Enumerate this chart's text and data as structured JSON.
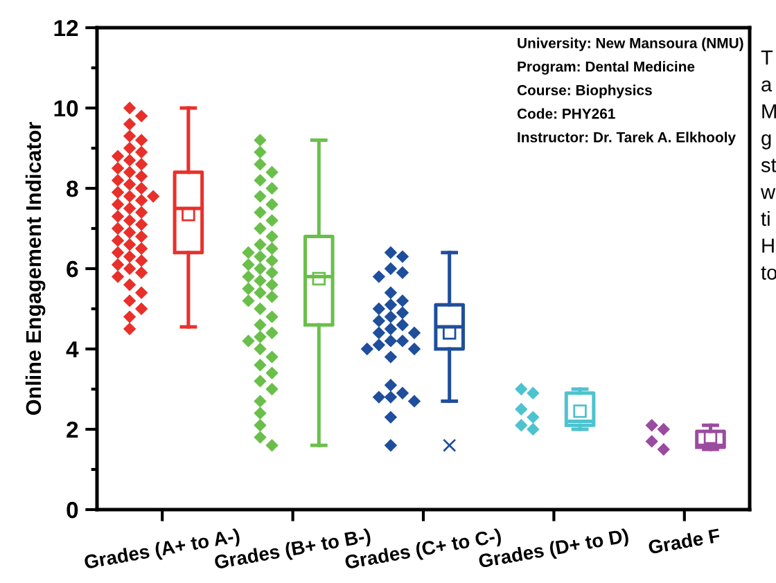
{
  "chart_data": {
    "type": "box",
    "ylabel": "Online Engagement Indicator",
    "categories": [
      "Grades (A+ to A-)",
      "Grades (B+ to B-)",
      "Grades (C+ to C-)",
      "Grades (D+ to D)",
      "Grade F"
    ],
    "ylim": [
      0,
      12
    ],
    "yticks": [
      0,
      {
        "value": 1,
        "label": null
      },
      2,
      {
        "value": 3,
        "label": null
      },
      4,
      {
        "value": 5,
        "label": null
      },
      6,
      {
        "value": 7,
        "label": null
      },
      8,
      {
        "value": 9,
        "label": null
      },
      10,
      {
        "value": 11,
        "label": null
      },
      12
    ],
    "grid": false,
    "legend": false,
    "marker": "diamond",
    "series": [
      {
        "type": "box",
        "colors": [
          "#e8302b",
          "#6abf4b",
          "#1f4e9c",
          "#4dc3cf",
          "#9b4b9f"
        ],
        "boxes": [
          {
            "low": 4.55,
            "q1": 6.4,
            "median": 7.5,
            "q3": 8.4,
            "high": 10.0,
            "mean": 7.35
          },
          {
            "low": 1.6,
            "q1": 4.6,
            "median": 5.8,
            "q3": 6.8,
            "high": 9.2,
            "mean": 5.75
          },
          {
            "low": 2.7,
            "q1": 4.0,
            "median": 4.55,
            "q3": 5.1,
            "high": 6.4,
            "mean": 4.4,
            "outliers": [
              1.6
            ]
          },
          {
            "low": 2.0,
            "q1": 2.1,
            "median": 2.2,
            "q3": 2.9,
            "high": 3.0,
            "mean": 2.45
          },
          {
            "low": 1.5,
            "q1": 1.55,
            "median": 1.6,
            "q3": 1.95,
            "high": 2.1,
            "mean": 1.8
          }
        ]
      },
      {
        "type": "scatter",
        "color": "#e8302b",
        "x": [
          "Grades (A+ to A-)",
          "Grades (A+ to A-)",
          "Grades (A+ to A-)",
          "Grades (A+ to A-)",
          "Grades (A+ to A-)",
          "Grades (A+ to A-)",
          "Grades (A+ to A-)",
          "Grades (A+ to A-)",
          "Grades (A+ to A-)",
          "Grades (A+ to A-)",
          "Grades (A+ to A-)",
          "Grades (A+ to A-)",
          "Grades (A+ to A-)",
          "Grades (A+ to A-)",
          "Grades (A+ to A-)",
          "Grades (A+ to A-)",
          "Grades (A+ to A-)",
          "Grades (A+ to A-)",
          "Grades (A+ to A-)",
          "Grades (A+ to A-)",
          "Grades (A+ to A-)",
          "Grades (A+ to A-)",
          "Grades (A+ to A-)",
          "Grades (A+ to A-)",
          "Grades (A+ to A-)",
          "Grades (A+ to A-)",
          "Grades (A+ to A-)",
          "Grades (A+ to A-)",
          "Grades (A+ to A-)",
          "Grades (A+ to A-)",
          "Grades (A+ to A-)",
          "Grades (A+ to A-)",
          "Grades (A+ to A-)",
          "Grades (A+ to A-)",
          "Grades (A+ to A-)",
          "Grades (A+ to A-)",
          "Grades (A+ to A-)",
          "Grades (A+ to A-)",
          "Grades (A+ to A-)",
          "Grades (A+ to A-)",
          "Grades (A+ to A-)",
          "Grades (A+ to A-)",
          "Grades (A+ to A-)",
          "Grades (A+ to A-)",
          "Grades (A+ to A-)"
        ],
        "values": [
          10.0,
          9.8,
          9.6,
          9.3,
          9.2,
          9.0,
          8.9,
          8.8,
          8.7,
          8.6,
          8.5,
          8.4,
          8.3,
          8.2,
          8.1,
          8.0,
          7.9,
          7.8,
          7.8,
          7.7,
          7.6,
          7.5,
          7.4,
          7.3,
          7.2,
          7.1,
          7.0,
          6.9,
          6.8,
          6.7,
          6.6,
          6.5,
          6.4,
          6.3,
          6.2,
          6.1,
          6.0,
          5.9,
          5.8,
          5.6,
          5.4,
          5.2,
          5.0,
          4.8,
          4.5
        ]
      },
      {
        "type": "scatter",
        "color": "#6abf4b",
        "x": [
          "Grades (B+ to B-)",
          "Grades (B+ to B-)",
          "Grades (B+ to B-)",
          "Grades (B+ to B-)",
          "Grades (B+ to B-)",
          "Grades (B+ to B-)",
          "Grades (B+ to B-)",
          "Grades (B+ to B-)",
          "Grades (B+ to B-)",
          "Grades (B+ to B-)",
          "Grades (B+ to B-)",
          "Grades (B+ to B-)",
          "Grades (B+ to B-)",
          "Grades (B+ to B-)",
          "Grades (B+ to B-)",
          "Grades (B+ to B-)",
          "Grades (B+ to B-)",
          "Grades (B+ to B-)",
          "Grades (B+ to B-)",
          "Grades (B+ to B-)",
          "Grades (B+ to B-)",
          "Grades (B+ to B-)",
          "Grades (B+ to B-)",
          "Grades (B+ to B-)",
          "Grades (B+ to B-)",
          "Grades (B+ to B-)",
          "Grades (B+ to B-)",
          "Grades (B+ to B-)",
          "Grades (B+ to B-)",
          "Grades (B+ to B-)",
          "Grades (B+ to B-)",
          "Grades (B+ to B-)",
          "Grades (B+ to B-)",
          "Grades (B+ to B-)",
          "Grades (B+ to B-)",
          "Grades (B+ to B-)",
          "Grades (B+ to B-)",
          "Grades (B+ to B-)",
          "Grades (B+ to B-)",
          "Grades (B+ to B-)",
          "Grades (B+ to B-)",
          "Grades (B+ to B-)",
          "Grades (B+ to B-)",
          "Grades (B+ to B-)"
        ],
        "values": [
          9.2,
          8.9,
          8.6,
          8.4,
          8.2,
          8.0,
          7.8,
          7.6,
          7.4,
          7.2,
          7.0,
          6.8,
          6.6,
          6.5,
          6.4,
          6.3,
          6.2,
          6.1,
          6.0,
          5.9,
          5.8,
          5.7,
          5.6,
          5.5,
          5.4,
          5.3,
          5.2,
          5.0,
          4.8,
          4.6,
          4.4,
          4.3,
          4.2,
          4.0,
          3.8,
          3.6,
          3.4,
          3.2,
          3.0,
          2.7,
          2.4,
          2.1,
          1.8,
          1.6
        ]
      },
      {
        "type": "scatter",
        "color": "#1f4e9c",
        "x": [
          "Grades (C+ to C-)",
          "Grades (C+ to C-)",
          "Grades (C+ to C-)",
          "Grades (C+ to C-)",
          "Grades (C+ to C-)",
          "Grades (C+ to C-)",
          "Grades (C+ to C-)",
          "Grades (C+ to C-)",
          "Grades (C+ to C-)",
          "Grades (C+ to C-)",
          "Grades (C+ to C-)",
          "Grades (C+ to C-)",
          "Grades (C+ to C-)",
          "Grades (C+ to C-)",
          "Grades (C+ to C-)",
          "Grades (C+ to C-)",
          "Grades (C+ to C-)",
          "Grades (C+ to C-)",
          "Grades (C+ to C-)",
          "Grades (C+ to C-)",
          "Grades (C+ to C-)",
          "Grades (C+ to C-)",
          "Grades (C+ to C-)",
          "Grades (C+ to C-)",
          "Grades (C+ to C-)",
          "Grades (C+ to C-)",
          "Grades (C+ to C-)",
          "Grades (C+ to C-)",
          "Grades (C+ to C-)"
        ],
        "values": [
          6.4,
          6.3,
          6.0,
          5.9,
          5.8,
          5.4,
          5.2,
          5.1,
          5.0,
          4.9,
          4.8,
          4.7,
          4.6,
          4.5,
          4.4,
          4.4,
          4.2,
          4.2,
          4.1,
          4.0,
          4.0,
          3.8,
          3.1,
          2.9,
          2.8,
          2.8,
          2.7,
          2.3,
          1.6
        ]
      },
      {
        "type": "scatter",
        "color": "#4dc3cf",
        "x": [
          "Grades (D+ to D)",
          "Grades (D+ to D)",
          "Grades (D+ to D)",
          "Grades (D+ to D)",
          "Grades (D+ to D)",
          "Grades (D+ to D)"
        ],
        "values": [
          3.0,
          2.9,
          2.5,
          2.3,
          2.1,
          2.0
        ]
      },
      {
        "type": "scatter",
        "color": "#9b4b9f",
        "x": [
          "Grade F",
          "Grade F",
          "Grade F",
          "Grade F"
        ],
        "values": [
          2.1,
          2.0,
          1.7,
          1.5
        ]
      }
    ],
    "annotations": [
      "University: New Mansoura (NMU)",
      "Program: Dental Medicine",
      "Course: Biophysics",
      "Code: PHY261",
      "Instructor: Dr. Tarek A. Elkhooly",
      "T\na\nM\ng\nst\nw\nti\nH\nto"
    ]
  }
}
